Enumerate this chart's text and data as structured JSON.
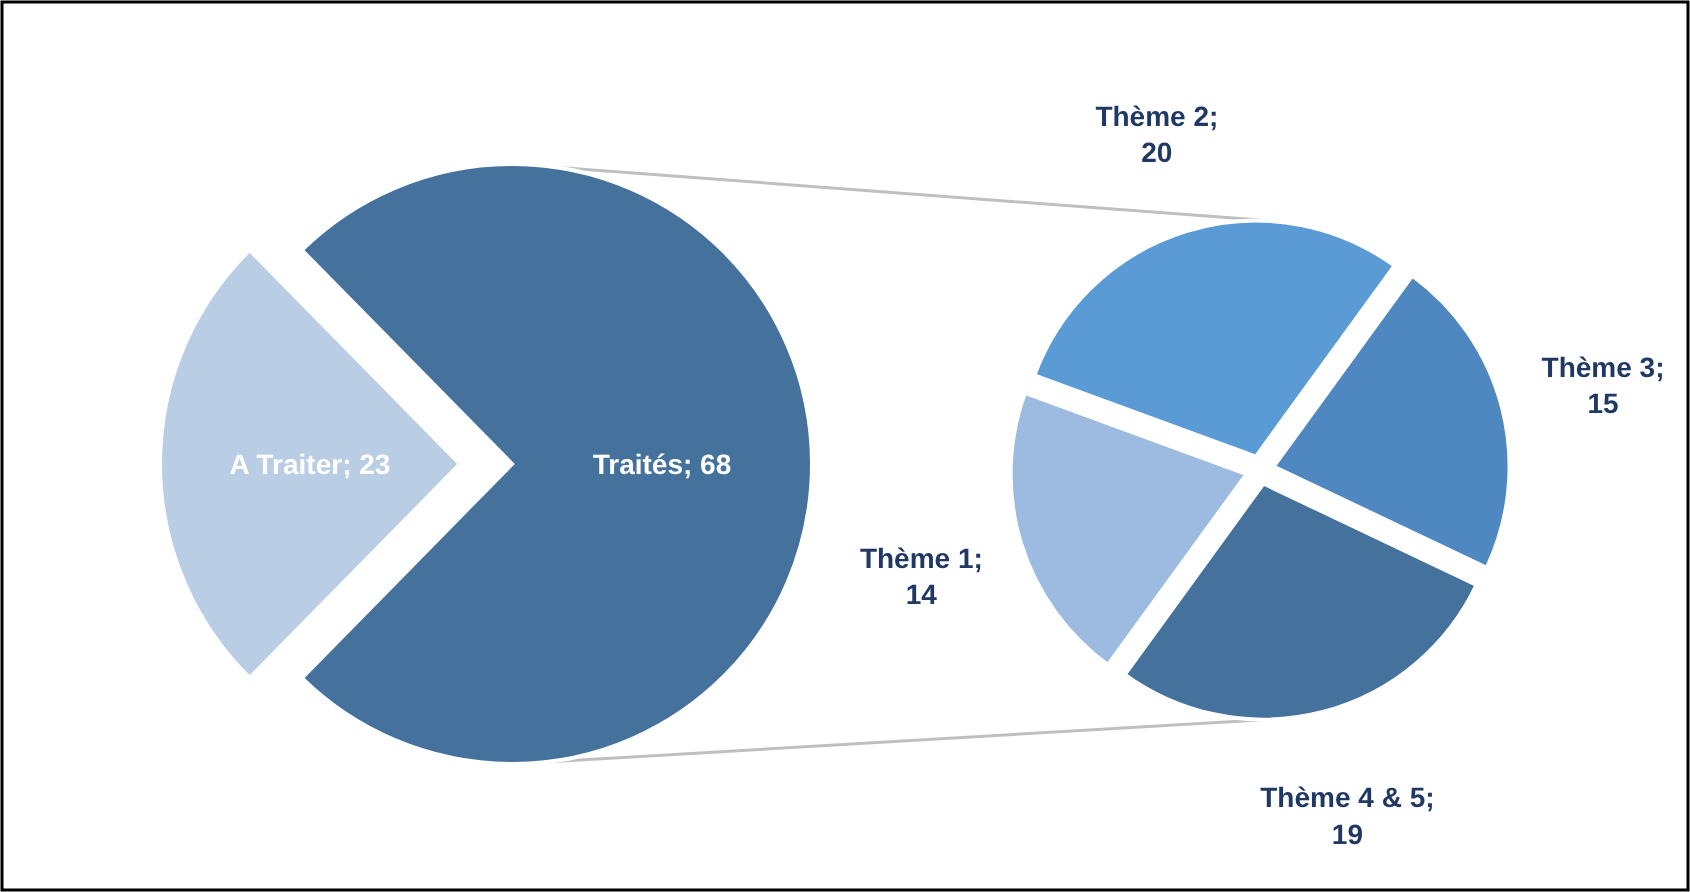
{
  "chart_data": [
    {
      "type": "pie",
      "categories": [
        "A Traiter",
        "Traités"
      ],
      "values": [
        23,
        68
      ],
      "colors": [
        "#b9cde5",
        "#44729d"
      ],
      "value_labels": [
        "; 23",
        "; 68"
      ]
    },
    {
      "type": "pie",
      "categories": [
        "Thème 1",
        "Thème 2",
        "Thème 3",
        "Thème 4 & 5"
      ],
      "values": [
        14,
        20,
        15,
        19
      ],
      "colors": [
        "#9dbbe0",
        "#5b9bd5",
        "#4f87c0",
        "#44729d"
      ],
      "value_labels": [
        "; 14",
        "; 20",
        "; 15",
        "; 19"
      ]
    }
  ]
}
